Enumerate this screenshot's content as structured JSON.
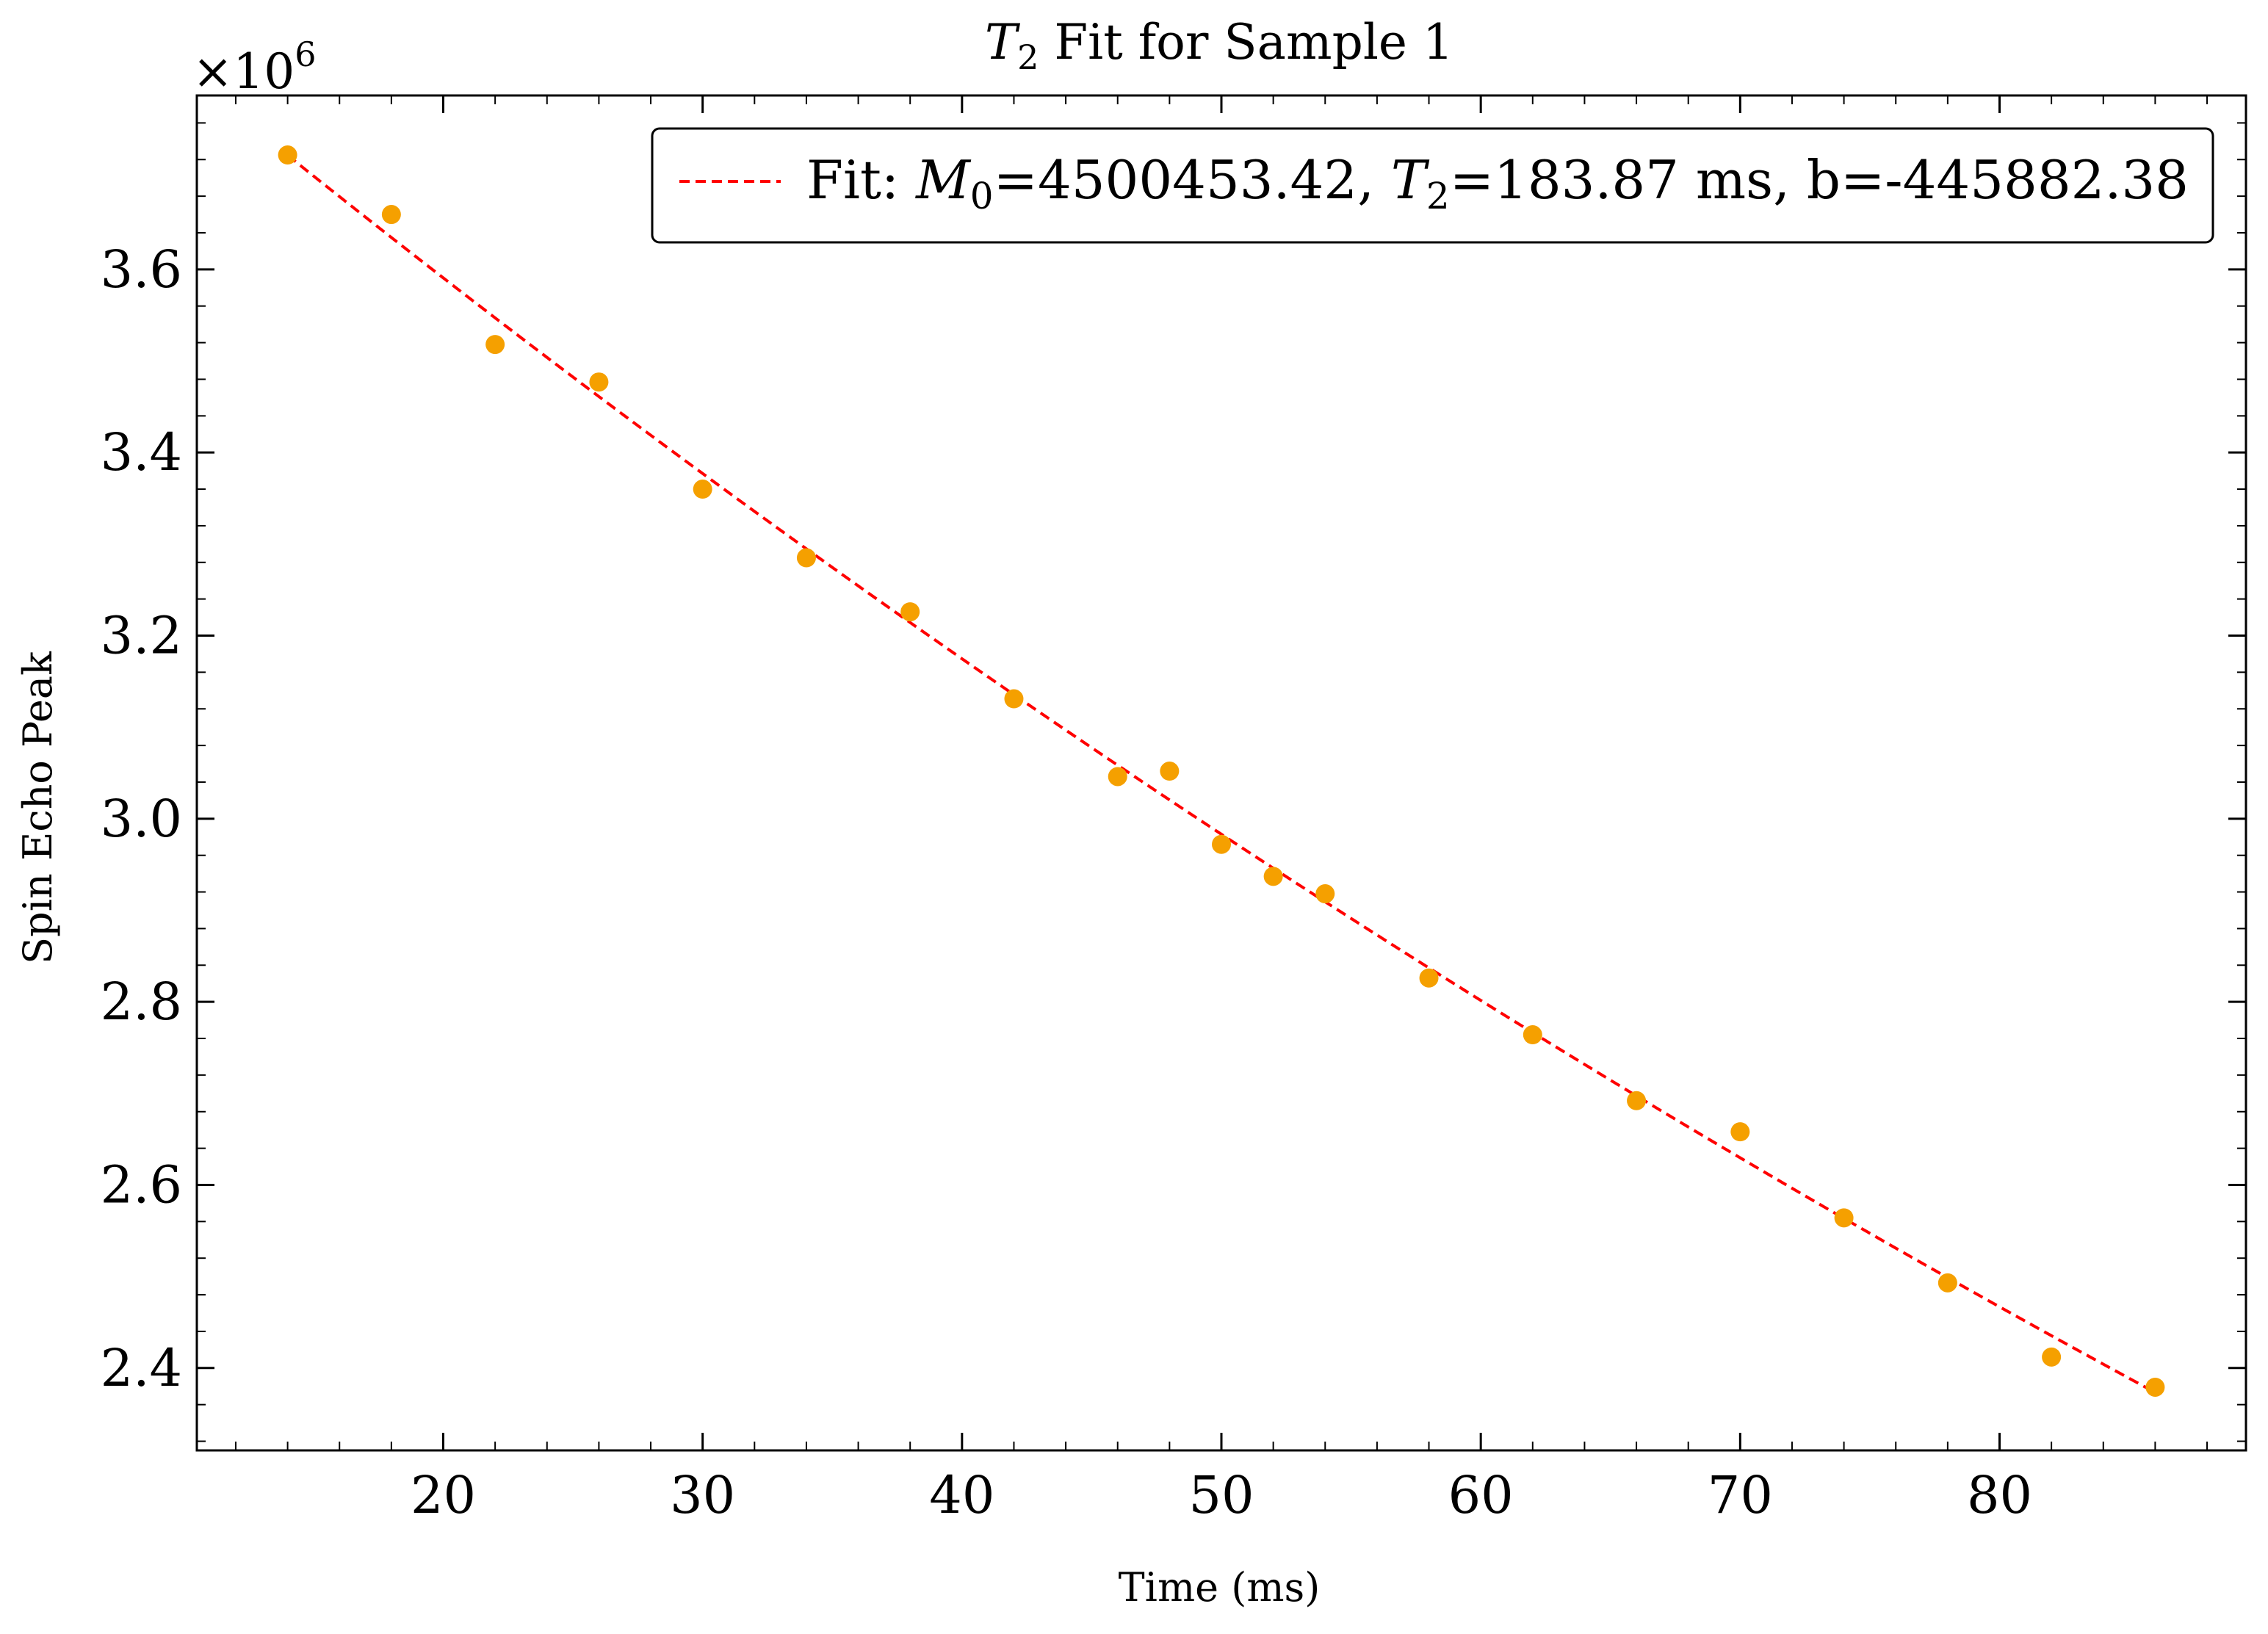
{
  "chart_data": {
    "type": "scatter",
    "title_parts": {
      "symbol": "T",
      "sub": "2",
      "rest": " Fit for Sample 1"
    },
    "xlabel": "Time (ms)",
    "ylabel": "Spin Echo Peak",
    "y_multiplier_label": {
      "base": "×10",
      "exp": "6"
    },
    "x_ticks": [
      20,
      30,
      40,
      50,
      60,
      70,
      80
    ],
    "y_ticks": [
      2.4,
      2.6,
      2.8,
      3.0,
      3.2,
      3.4,
      3.6
    ],
    "y_tick_labels": [
      "2.4",
      "2.6",
      "2.8",
      "3.0",
      "3.2",
      "3.4",
      "3.6"
    ],
    "xlim": [
      10.5,
      89.5
    ],
    "ylim": [
      2.31,
      3.79
    ],
    "grid": false,
    "legend_position": "top-right",
    "series": [
      {
        "kind": "points",
        "color": "#f5a000",
        "x": [
          14,
          18,
          22,
          26,
          30,
          34,
          38,
          42,
          46,
          48,
          50,
          52,
          54,
          58,
          62,
          66,
          70,
          74,
          78,
          82,
          86
        ],
        "y": [
          3.725,
          3.66,
          3.518,
          3.477,
          3.36,
          3.285,
          3.226,
          3.131,
          3.046,
          3.052,
          2.972,
          2.937,
          2.918,
          2.826,
          2.764,
          2.692,
          2.658,
          2.564,
          2.493,
          2.412,
          2.379
        ]
      },
      {
        "kind": "fit-line",
        "color": "#ff0000",
        "legend_parts": {
          "prefix": "Fit: ",
          "m_symbol": "M",
          "m_sub": "0",
          "m_value": "=4500453.42, ",
          "t_symbol": "T",
          "t_sub": "2",
          "t_value": "=183.87 ms, b=-445882.38"
        }
      }
    ]
  }
}
